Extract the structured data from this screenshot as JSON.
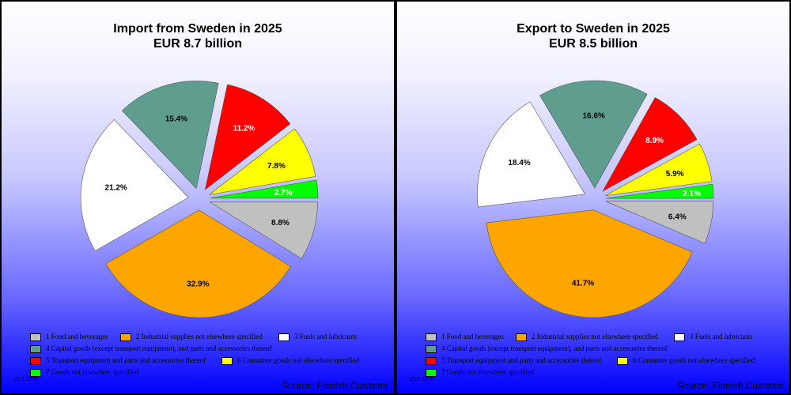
{
  "chart_data": [
    {
      "type": "pie",
      "title": "Import from Sweden in 2025",
      "subtitle": "EUR   8.7 billion",
      "categories": [
        "1 Food and beverages",
        "2 Industrial supplies not elsewhere specified",
        "3 Fuels and lubricants",
        "4 Capital goods (except transport equipment), and parts and accessories thereof",
        "5  Transport equipment and parts and accessories thereof",
        "6 Consumer goods not elsewhere specified",
        "7 Goods not elsewhere specified"
      ],
      "values": [
        8.8,
        32.9,
        21.2,
        15.4,
        11.2,
        7.8,
        2.7
      ],
      "labels": [
        "8.8%",
        "32.9%",
        "21.2%",
        "15.4%",
        "11.2%",
        "7.8%",
        "2.7%"
      ],
      "colors": [
        "#c0c0c0",
        "#ffa500",
        "#ffffff",
        "#5f9e8f",
        "#ff0000",
        "#ffff00",
        "#00ff00"
      ],
      "label_colors": [
        "#000000",
        "#000000",
        "#000000",
        "#000000",
        "#ffffff",
        "#000000",
        "#ffffff"
      ],
      "legend_position": "bottom",
      "date": "29.6.2026",
      "source": "Source: Finnish Customs"
    },
    {
      "type": "pie",
      "title": "Export to Sweden in 2025",
      "subtitle": "EUR   8.5 billion",
      "categories": [
        "1 Food and beverages",
        "2 Industrial supplies not elsewhere specified",
        "3 Fuels and lubricants",
        "4 Capital goods (except transport equipment), and parts and accessories thereof",
        "5  Transport equipment and parts and accessories thereof",
        "6 Consumer goods not elsewhere specified",
        "7 Goods not elsewhere specified"
      ],
      "values": [
        6.4,
        41.7,
        18.4,
        16.6,
        8.9,
        5.9,
        2.1
      ],
      "labels": [
        "6.4%",
        "41.7%",
        "18.4%",
        "16.6%",
        "8.9%",
        "5.9%",
        "2.1%"
      ],
      "colors": [
        "#c0c0c0",
        "#ffa500",
        "#ffffff",
        "#5f9e8f",
        "#ff0000",
        "#ffff00",
        "#00ff00"
      ],
      "label_colors": [
        "#000000",
        "#000000",
        "#000000",
        "#000000",
        "#ffffff",
        "#000000",
        "#ffffff"
      ],
      "legend_position": "bottom",
      "date": "29.6.2026",
      "source": "Source: Finnish Customs"
    }
  ]
}
